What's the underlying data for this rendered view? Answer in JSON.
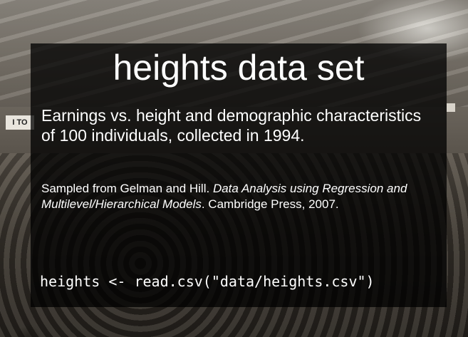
{
  "slide": {
    "title": "heights data set",
    "description": "Earnings vs. height and demographic characteristics of 100 individuals, collected in 1994.",
    "source": {
      "prefix": "Sampled from Gelman and Hill. ",
      "book_title": "Data Analysis using Regression and Multilevel/Hierarchical Models",
      "suffix": ". Cambridge Press, 2007."
    },
    "code": "heights <- read.csv(\"data/heights.csv\")"
  },
  "background": {
    "sign_left_text": "I TO"
  }
}
